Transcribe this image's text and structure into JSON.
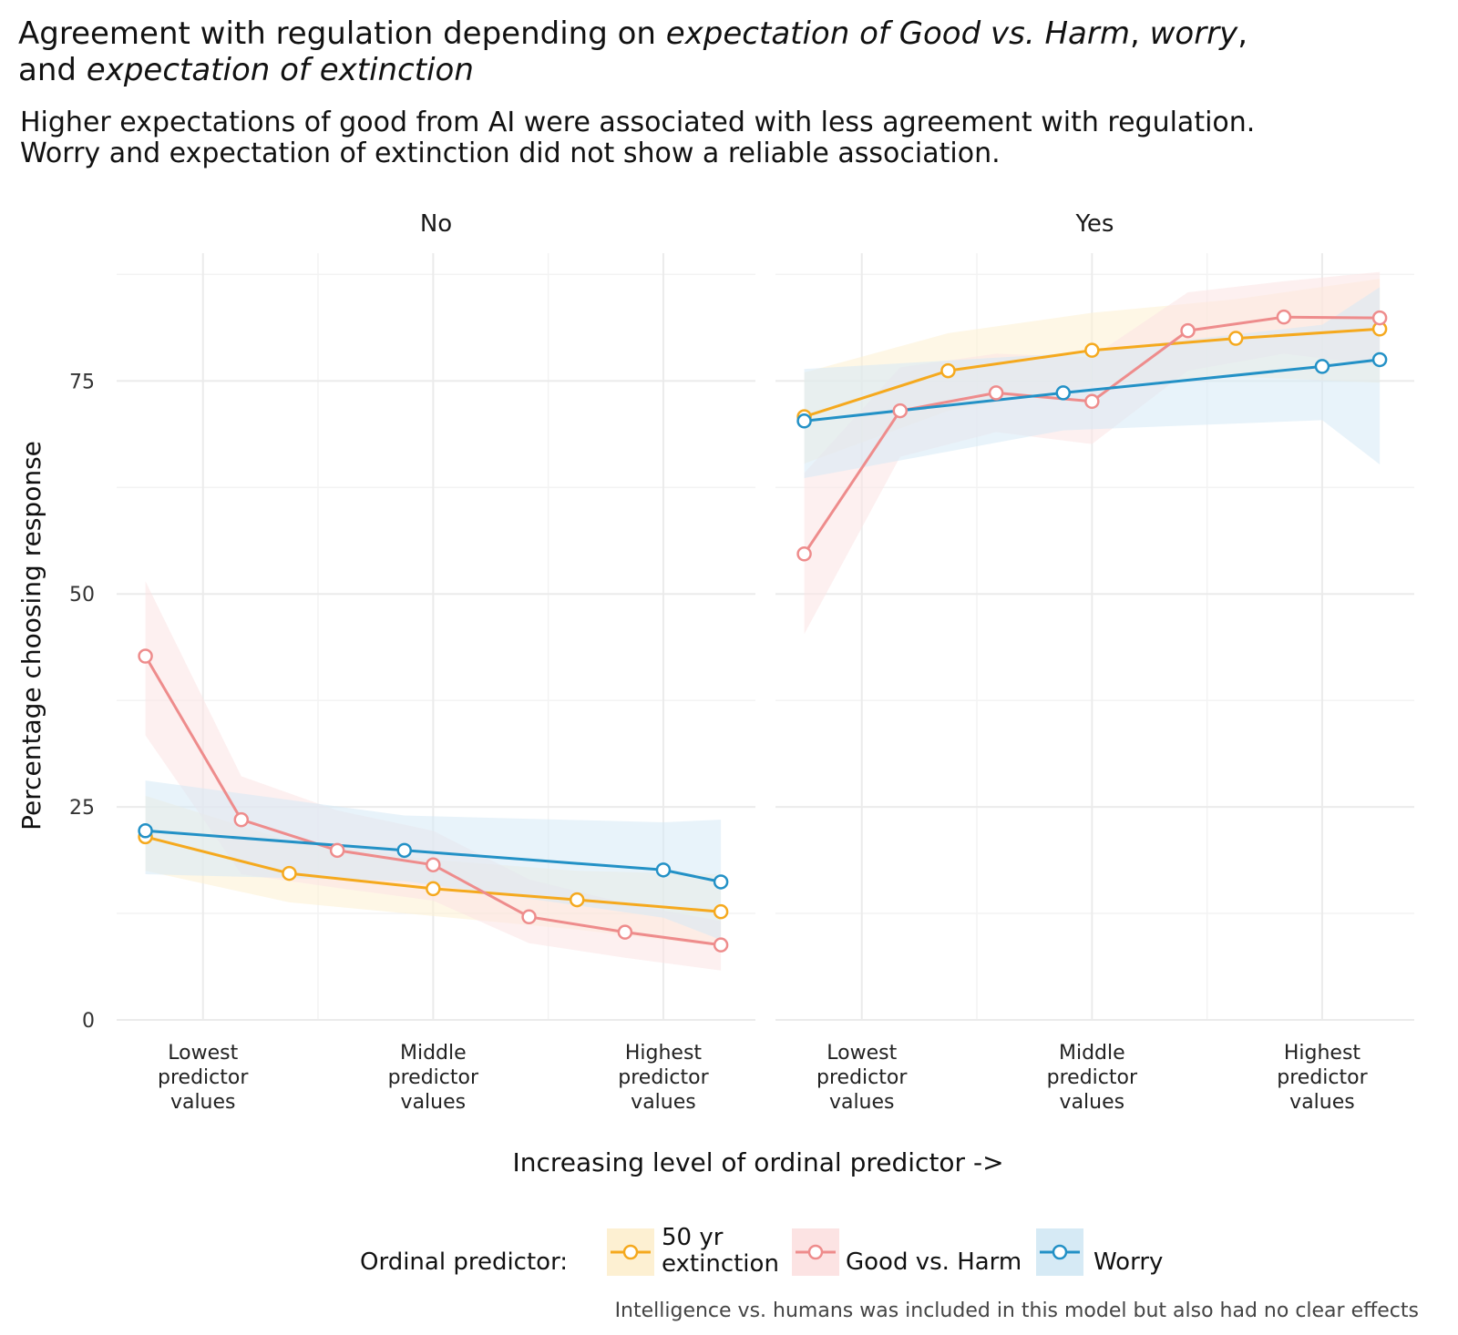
{
  "title": {
    "line1_parts": [
      {
        "text": "Agreement with regulation depending on ",
        "italic": false
      },
      {
        "text": "expectation of Good vs. Harm",
        "italic": true
      },
      {
        "text": ", ",
        "italic": false
      },
      {
        "text": "worry",
        "italic": true
      },
      {
        "text": ",",
        "italic": false
      }
    ],
    "line2_parts": [
      {
        "text": "and ",
        "italic": false
      },
      {
        "text": "expectation of extinction",
        "italic": true
      }
    ]
  },
  "subtitle": {
    "line1": "Higher expectations of good from AI were associated with less agreement with regulation.",
    "line2": "Worry and expectation of extinction did not show a reliable association."
  },
  "caption": "Intelligence vs. humans was included in this model but also had no clear effects",
  "legend": {
    "title": "Ordinal predictor:",
    "items": [
      {
        "key": "extinction",
        "label_lines": [
          "50 yr",
          "extinction"
        ],
        "color": "#F5A91E",
        "fill": "#FDF0D2"
      },
      {
        "key": "goodharm",
        "label_lines": [
          "Good vs. Harm"
        ],
        "color": "#EE8C8C",
        "fill": "#FCE3E3"
      },
      {
        "key": "worry",
        "label_lines": [
          "Worry"
        ],
        "color": "#2391C6",
        "fill": "#D6EAF5"
      }
    ]
  },
  "chart_data": {
    "type": "line",
    "xlabel": "Increasing level of ordinal predictor ->",
    "ylabel": "Percentage choosing response",
    "ylim": [
      0,
      90
    ],
    "yticks": [
      0,
      25,
      50,
      75
    ],
    "xticks": [
      {
        "pos": 1,
        "lines": [
          "Lowest",
          "predictor",
          "values"
        ]
      },
      {
        "pos": 3,
        "lines": [
          "Middle",
          "predictor",
          "values"
        ]
      },
      {
        "pos": 5,
        "lines": [
          "Highest",
          "predictor",
          "values"
        ]
      }
    ],
    "xlim": [
      0.25,
      5.8
    ],
    "grid": true,
    "legend_position": "bottom",
    "facets": [
      {
        "name": "No",
        "series": [
          {
            "key": "extinction",
            "name": "50 yr extinction",
            "x": [
              0.5,
              1.75,
              3.0,
              4.25,
              5.5
            ],
            "y": [
              21.5,
              17.2,
              15.4,
              14.1,
              12.7
            ],
            "lo": [
              17.5,
              13.8,
              12.2,
              10.6,
              8.6
            ],
            "hi": [
              26.3,
              21.0,
              18.8,
              17.5,
              17.1
            ]
          },
          {
            "key": "goodharm",
            "name": "Good vs. Harm",
            "x": [
              0.5,
              1.333,
              2.167,
              3.0,
              3.833,
              4.667,
              5.5
            ],
            "y": [
              42.7,
              23.5,
              19.9,
              18.2,
              12.1,
              10.3,
              8.8
            ],
            "lo": [
              33.4,
              17.1,
              15.5,
              14.0,
              9.0,
              7.3,
              5.8
            ],
            "hi": [
              51.5,
              28.6,
              24.6,
              22.2,
              16.5,
              13.7,
              11.6
            ]
          },
          {
            "key": "worry",
            "name": "Worry",
            "x": [
              0.5,
              2.75,
              5.0,
              5.5
            ],
            "y": [
              22.2,
              19.9,
              17.6,
              16.2
            ],
            "lo": [
              17.1,
              16.3,
              12.0,
              9.4
            ],
            "hi": [
              28.1,
              24.0,
              23.2,
              23.5
            ]
          }
        ]
      },
      {
        "name": "Yes",
        "series": [
          {
            "key": "extinction",
            "name": "50 yr extinction",
            "x": [
              0.5,
              1.75,
              3.0,
              4.25,
              5.5
            ],
            "y": [
              70.8,
              76.2,
              78.6,
              80.0,
              81.1
            ],
            "lo": [
              65.3,
              71.5,
              74.5,
              75.5,
              74.8
            ],
            "hi": [
              76.0,
              80.6,
              83.0,
              84.6,
              87.0
            ]
          },
          {
            "key": "goodharm",
            "name": "Good vs. Harm",
            "x": [
              0.5,
              1.333,
              2.167,
              3.0,
              3.833,
              4.667,
              5.5
            ],
            "y": [
              54.7,
              71.5,
              73.6,
              72.6,
              80.9,
              82.5,
              82.4
            ],
            "lo": [
              45.3,
              66.1,
              69.0,
              67.6,
              76.2,
              78.2,
              76.8
            ],
            "hi": [
              64.2,
              76.6,
              78.2,
              77.8,
              85.4,
              86.7,
              87.8
            ]
          },
          {
            "key": "worry",
            "name": "Worry",
            "x": [
              0.5,
              2.75,
              5.0,
              5.5
            ],
            "y": [
              70.3,
              73.6,
              76.7,
              77.5
            ],
            "lo": [
              63.6,
              69.2,
              70.4,
              65.2
            ],
            "hi": [
              76.4,
              78.2,
              81.6,
              86.0
            ]
          }
        ]
      }
    ]
  }
}
